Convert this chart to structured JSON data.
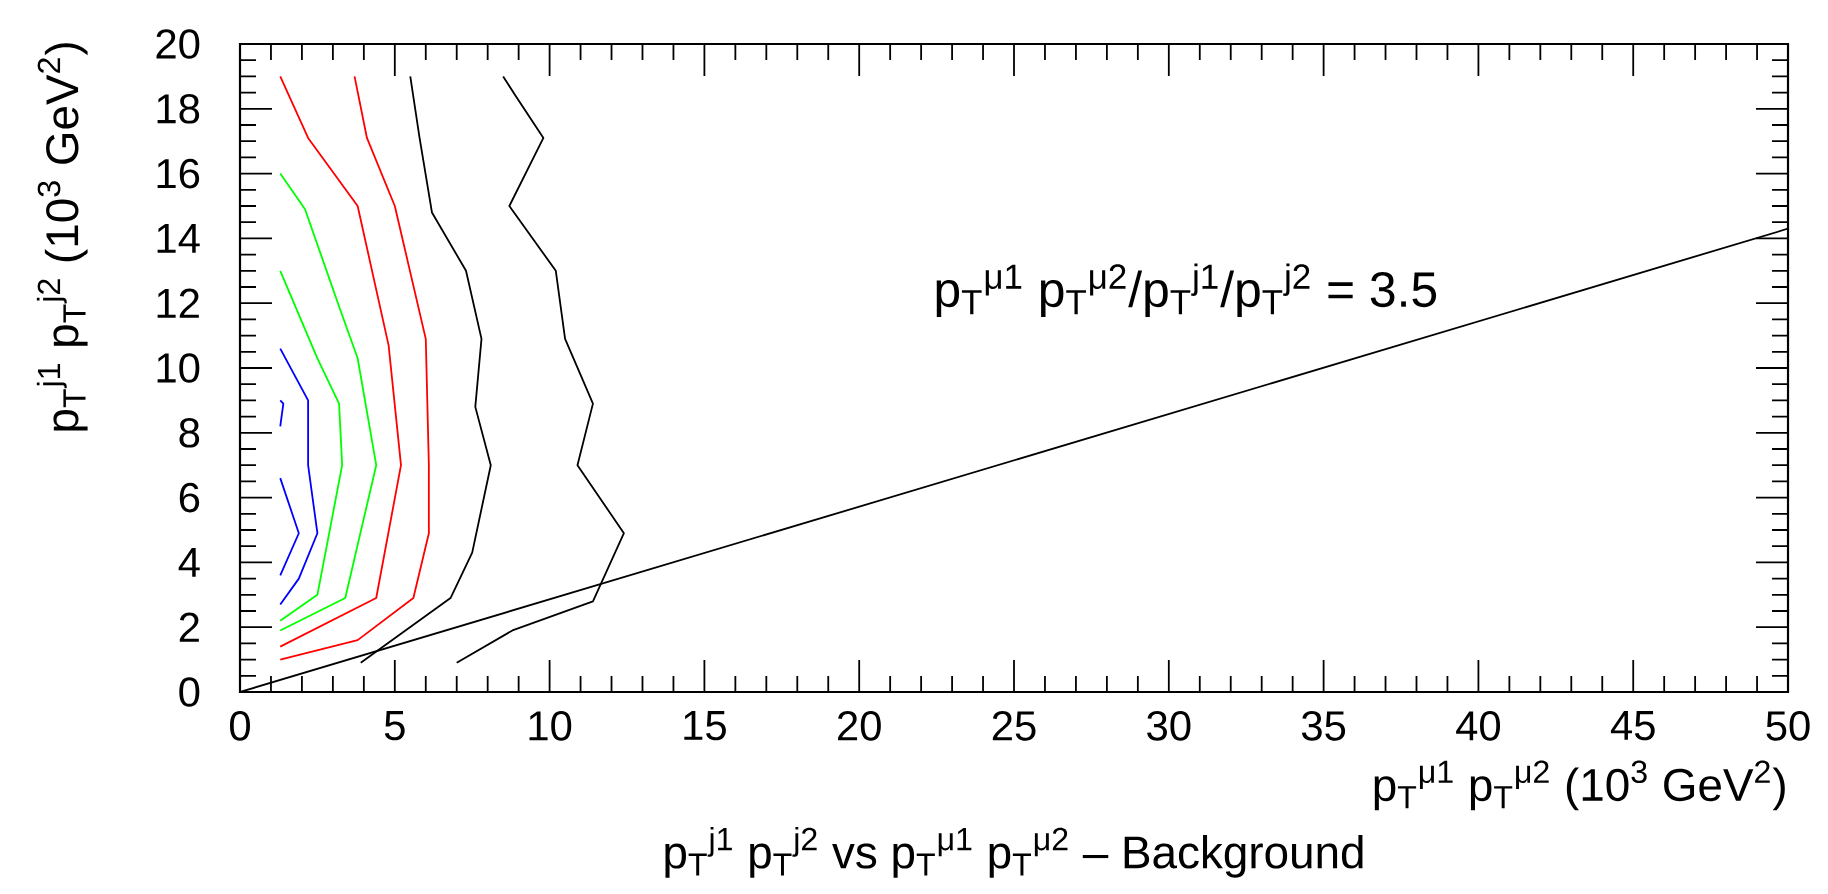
{
  "chart_data": {
    "type": "line",
    "title": "p$_{T}$$^{j1}$ p$_{T}$$^{j2}$ vs p$_{T}$$^{μ1}$ p$_{T}$$^{μ2}$ – Background",
    "xlabel": "p$_{T}$$^{μ1}$ p$_{T}$$^{μ2}$ (10$^{3}$ GeV$^{2}$)",
    "ylabel": "p$_{T}$$^{j1}$ p$_{T}$$^{j2}$ (10$^{3}$ GeV$^{2}$)",
    "annotations": [
      "p$_{T}$$^{μ1}$ p$_{T}$$^{μ2}$/p$_{T}$$^{j1}$/p$_{T}$$^{j2}$ = 3.5"
    ],
    "xlim": [
      0,
      50
    ],
    "ylim": [
      0,
      20
    ],
    "xticks": [
      0,
      {
        "value": 1,
        "label": null
      },
      {
        "value": 2,
        "label": null
      },
      {
        "value": 3,
        "label": null
      },
      {
        "value": 4,
        "label": null
      },
      5,
      {
        "value": 6,
        "label": null
      },
      {
        "value": 7,
        "label": null
      },
      {
        "value": 8,
        "label": null
      },
      {
        "value": 9,
        "label": null
      },
      10,
      {
        "value": 11,
        "label": null
      },
      {
        "value": 12,
        "label": null
      },
      {
        "value": 13,
        "label": null
      },
      {
        "value": 14,
        "label": null
      },
      15,
      {
        "value": 16,
        "label": null
      },
      {
        "value": 17,
        "label": null
      },
      {
        "value": 18,
        "label": null
      },
      {
        "value": 19,
        "label": null
      },
      20,
      {
        "value": 21,
        "label": null
      },
      {
        "value": 22,
        "label": null
      },
      {
        "value": 23,
        "label": null
      },
      {
        "value": 24,
        "label": null
      },
      25,
      {
        "value": 26,
        "label": null
      },
      {
        "value": 27,
        "label": null
      },
      {
        "value": 28,
        "label": null
      },
      {
        "value": 29,
        "label": null
      },
      30,
      {
        "value": 31,
        "label": null
      },
      {
        "value": 32,
        "label": null
      },
      {
        "value": 33,
        "label": null
      },
      {
        "value": 34,
        "label": null
      },
      35,
      {
        "value": 36,
        "label": null
      },
      {
        "value": 37,
        "label": null
      },
      {
        "value": 38,
        "label": null
      },
      {
        "value": 39,
        "label": null
      },
      40,
      {
        "value": 41,
        "label": null
      },
      {
        "value": 42,
        "label": null
      },
      {
        "value": 43,
        "label": null
      },
      {
        "value": 44,
        "label": null
      },
      45,
      {
        "value": 46,
        "label": null
      },
      {
        "value": 47,
        "label": null
      },
      {
        "value": 48,
        "label": null
      },
      {
        "value": 49,
        "label": null
      },
      50
    ],
    "yticks": [
      0,
      {
        "value": 0.5,
        "label": null
      },
      {
        "value": 1,
        "label": null
      },
      {
        "value": 1.5,
        "label": null
      },
      2,
      {
        "value": 2.5,
        "label": null
      },
      {
        "value": 3,
        "label": null
      },
      {
        "value": 3.5,
        "label": null
      },
      4,
      {
        "value": 4.5,
        "label": null
      },
      {
        "value": 5,
        "label": null
      },
      {
        "value": 5.5,
        "label": null
      },
      6,
      {
        "value": 6.5,
        "label": null
      },
      {
        "value": 7,
        "label": null
      },
      {
        "value": 7.5,
        "label": null
      },
      8,
      {
        "value": 8.5,
        "label": null
      },
      {
        "value": 9,
        "label": null
      },
      {
        "value": 9.5,
        "label": null
      },
      10,
      {
        "value": 10.5,
        "label": null
      },
      {
        "value": 11,
        "label": null
      },
      {
        "value": 11.5,
        "label": null
      },
      12,
      {
        "value": 12.5,
        "label": null
      },
      {
        "value": 13,
        "label": null
      },
      {
        "value": 13.5,
        "label": null
      },
      14,
      {
        "value": 14.5,
        "label": null
      },
      {
        "value": 15,
        "label": null
      },
      {
        "value": 15.5,
        "label": null
      },
      16,
      {
        "value": 16.5,
        "label": null
      },
      {
        "value": 17,
        "label": null
      },
      {
        "value": 17.5,
        "label": null
      },
      18,
      {
        "value": 18.5,
        "label": null
      },
      {
        "value": 19,
        "label": null
      },
      {
        "value": 19.5,
        "label": null
      },
      20
    ],
    "line_style": "solid",
    "series": [
      {
        "color": "#0000ff",
        "x": [
          1.3,
          2.2,
          2.2,
          2.5,
          1.9,
          1.3
        ],
        "values": [
          10.6,
          9.0,
          7.0,
          4.9,
          3.5,
          2.7
        ]
      },
      {
        "color": "#0000ff",
        "x": [
          1.3,
          1.4,
          1.3
        ],
        "values": [
          9.0,
          8.9,
          8.2
        ]
      },
      {
        "color": "#0000ff",
        "x": [
          1.3,
          1.9,
          1.3
        ],
        "values": [
          6.6,
          4.9,
          3.6
        ]
      },
      {
        "color": "#00ff00",
        "x": [
          1.3,
          2.1,
          3.2,
          3.8,
          4.4,
          3.4,
          1.3
        ],
        "values": [
          16.0,
          14.9,
          11.9,
          10.3,
          7.0,
          2.9,
          1.9
        ]
      },
      {
        "color": "#00ff00",
        "x": [
          1.3,
          2.5,
          3.2,
          3.3,
          2.5,
          1.3
        ],
        "values": [
          13.0,
          10.3,
          8.9,
          7.0,
          3.0,
          2.2
        ]
      },
      {
        "color": "#ff0000",
        "x": [
          1.3,
          2.2,
          3.8,
          4.8,
          5.2,
          4.4,
          1.3
        ],
        "values": [
          19.0,
          17.1,
          15.0,
          10.7,
          7.0,
          2.9,
          1.4
        ]
      },
      {
        "color": "#ff0000",
        "x": [
          3.7,
          4.1,
          5.0,
          6.0,
          6.1,
          6.1,
          5.6,
          3.8,
          1.3
        ],
        "values": [
          19.0,
          17.1,
          15.0,
          10.9,
          7.0,
          4.9,
          2.9,
          1.6,
          1.0
        ]
      },
      {
        "color": "#000000",
        "x": [
          5.5,
          5.8,
          6.2,
          7.3,
          7.8,
          7.6,
          8.1,
          7.5,
          6.8,
          3.9
        ],
        "values": [
          19.0,
          17.1,
          14.8,
          13.0,
          10.9,
          8.8,
          7.0,
          4.3,
          2.9,
          0.9
        ]
      },
      {
        "color": "#000000",
        "x": [
          8.5,
          8.9,
          9.8,
          8.7,
          10.2,
          10.5,
          11.4,
          10.9,
          12.4,
          11.4,
          8.8,
          7.0
        ],
        "values": [
          19.0,
          18.4,
          17.1,
          15.0,
          13.0,
          10.9,
          8.9,
          7.0,
          4.9,
          2.8,
          1.9,
          0.9
        ]
      },
      {
        "color": "#000000",
        "x": [
          0,
          50
        ],
        "values": [
          0,
          14.3
        ]
      }
    ]
  }
}
